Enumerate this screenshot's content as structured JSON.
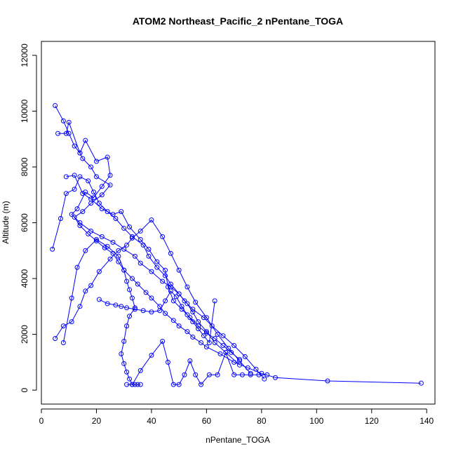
{
  "chart_data": {
    "type": "scatter",
    "title": "ATOM2 Northeast_Pacific_2 nPentane_TOGA",
    "xlabel": "nPentane_TOGA",
    "ylabel": "Altitude (m)",
    "xlim": [
      0,
      143
    ],
    "ylim": [
      -500,
      12500
    ],
    "xticks": [
      0,
      20,
      40,
      60,
      80,
      100,
      120,
      140
    ],
    "yticks": [
      0,
      2000,
      4000,
      6000,
      8000,
      10000,
      12000
    ],
    "grid": false,
    "legend": "none",
    "color": "#0000ff",
    "point_style": "open-circle",
    "connected": true,
    "series": [
      {
        "x": [
          5,
          8,
          10,
          12,
          14,
          15,
          18,
          20,
          25,
          22,
          18,
          15,
          12,
          14,
          17,
          20,
          23,
          26,
          28,
          30,
          33,
          35,
          38,
          40,
          43,
          45,
          48,
          50,
          53,
          55,
          58,
          60,
          65,
          70,
          75,
          80,
          85,
          104,
          138
        ],
        "y": [
          10200,
          9650,
          9200,
          8750,
          8500,
          8300,
          8000,
          7650,
          7350,
          7000,
          6700,
          6400,
          6200,
          5900,
          5600,
          5350,
          5100,
          4900,
          4600,
          4300,
          4000,
          3800,
          3500,
          3300,
          3000,
          2750,
          2500,
          2300,
          2100,
          1900,
          1700,
          1550,
          1300,
          1000,
          800,
          600,
          450,
          330,
          250
        ]
      },
      {
        "x": [
          6,
          9,
          10,
          14,
          16,
          20,
          24,
          25,
          22,
          19,
          16,
          13,
          11,
          14,
          18,
          22,
          26,
          30,
          34,
          36,
          40,
          44,
          47,
          50,
          52,
          55,
          59,
          62,
          66,
          70,
          74,
          78,
          81
        ],
        "y": [
          9200,
          9200,
          9600,
          8500,
          8950,
          8200,
          8350,
          7700,
          7300,
          6900,
          7100,
          6500,
          6300,
          6000,
          5700,
          5500,
          5300,
          5050,
          4800,
          4550,
          4250,
          3900,
          3700,
          3450,
          3200,
          2900,
          2600,
          2300,
          1950,
          1600,
          1200,
          750,
          400
        ]
      },
      {
        "x": [
          4,
          7,
          9,
          12,
          14,
          17,
          19,
          21,
          24,
          27,
          30,
          33,
          37,
          39,
          42,
          45,
          47,
          50,
          53,
          55,
          57,
          60,
          63,
          67,
          72
        ],
        "y": [
          5050,
          6150,
          7050,
          7200,
          7650,
          7500,
          7100,
          6700,
          6400,
          6150,
          5800,
          5500,
          5200,
          4800,
          4400,
          4100,
          3800,
          3450,
          3100,
          2800,
          2450,
          2100,
          1700,
          1350,
          900
        ]
      },
      {
        "x": [
          5,
          8,
          11,
          14,
          16,
          18,
          21,
          25,
          28,
          31,
          33,
          36,
          40,
          44,
          47,
          50,
          53,
          56,
          60,
          64,
          68,
          72,
          76
        ],
        "y": [
          1850,
          2300,
          2450,
          3000,
          3550,
          3750,
          4250,
          4700,
          5000,
          5200,
          5450,
          5700,
          6100,
          5500,
          4900,
          4300,
          3700,
          3150,
          2600,
          2000,
          1500,
          1050,
          600
        ]
      },
      {
        "x": [
          8,
          11,
          13,
          16,
          20,
          24,
          28,
          30,
          31,
          32,
          33,
          34,
          32,
          31,
          30,
          29,
          30,
          31,
          32,
          33,
          34,
          35,
          36
        ],
        "y": [
          1700,
          3300,
          4400,
          5000,
          5400,
          5150,
          4800,
          4300,
          3900,
          3600,
          3300,
          2950,
          2650,
          2300,
          1750,
          1300,
          950,
          650,
          400,
          200,
          200,
          200,
          200
        ]
      },
      {
        "x": [
          31,
          33,
          36,
          40,
          44,
          46,
          48,
          50,
          52,
          54,
          56,
          58,
          61,
          64,
          67,
          70,
          73,
          76,
          79,
          82
        ],
        "y": [
          200,
          200,
          700,
          1250,
          1750,
          1000,
          200,
          200,
          550,
          1050,
          550,
          200,
          550,
          550,
          1350,
          550,
          550,
          550,
          550,
          550
        ]
      },
      {
        "x": [
          21,
          24,
          27,
          29,
          31,
          34,
          37,
          40,
          43,
          45,
          47,
          49,
          51,
          53,
          55,
          57,
          59,
          61,
          63
        ],
        "y": [
          3250,
          3100,
          3050,
          3000,
          2950,
          2900,
          2850,
          2800,
          2850,
          3200,
          3550,
          3350,
          3000,
          2700,
          2450,
          2200,
          1950,
          1700,
          3200
        ]
      },
      {
        "x": [
          9,
          12,
          15,
          18,
          22,
          26,
          29,
          32,
          36,
          39,
          42,
          45,
          46,
          48,
          51,
          54,
          57,
          60,
          63,
          66,
          69,
          72
        ],
        "y": [
          7650,
          7700,
          7050,
          6850,
          6500,
          6300,
          6400,
          5850,
          5400,
          5050,
          4600,
          4300,
          3700,
          3200,
          2900,
          2600,
          2300,
          2050,
          1850,
          1600,
          1350,
          1100
        ]
      }
    ]
  }
}
